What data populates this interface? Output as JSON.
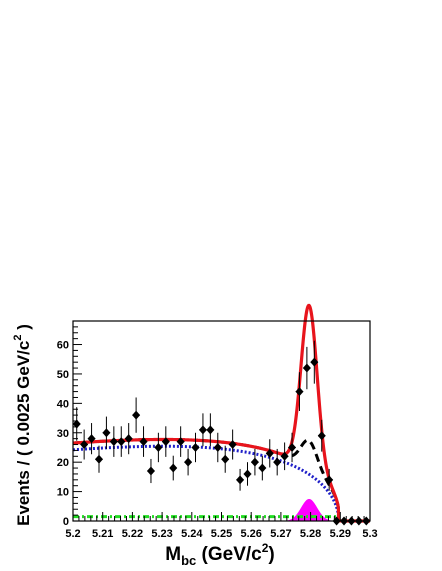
{
  "chart_data": {
    "type": "scatter",
    "xlabel": "M",
    "xlabel_sub": "bc",
    "xlabel_unit_pre": " (GeV/c",
    "xlabel_unit_sup": "2",
    "xlabel_unit_post": ")",
    "ylabel_pre": "Events / ( 0.0025 GeV/c",
    "ylabel_sup": "2",
    "ylabel_post": " )",
    "xlim": [
      5.2,
      5.3
    ],
    "ylim": [
      0,
      68
    ],
    "x_ticks": [
      "5.2",
      "5.21",
      "5.22",
      "5.23",
      "5.24",
      "5.25",
      "5.26",
      "5.27",
      "5.28",
      "5.29",
      "5.3"
    ],
    "y_ticks": [
      "0",
      "10",
      "20",
      "30",
      "40",
      "50",
      "60"
    ],
    "x_tick_values": [
      5.2,
      5.21,
      5.22,
      5.23,
      5.24,
      5.25,
      5.26,
      5.27,
      5.28,
      5.29,
      5.3
    ],
    "y_tick_values": [
      0,
      10,
      20,
      30,
      40,
      50,
      60
    ],
    "grid": false,
    "data_points": {
      "x": [
        5.20125,
        5.20375,
        5.20625,
        5.20875,
        5.21125,
        5.21375,
        5.21625,
        5.21875,
        5.22125,
        5.22375,
        5.22625,
        5.22875,
        5.23125,
        5.23375,
        5.23625,
        5.23875,
        5.24125,
        5.24375,
        5.24625,
        5.24875,
        5.25125,
        5.25375,
        5.25625,
        5.25875,
        5.26125,
        5.26375,
        5.26625,
        5.26875,
        5.27125,
        5.27375,
        5.27625,
        5.27875,
        5.28125,
        5.28375,
        5.28625,
        5.28875,
        5.29125,
        5.29375,
        5.29625,
        5.29875
      ],
      "y": [
        33,
        26,
        28,
        21,
        30,
        27,
        27,
        28,
        36,
        27,
        17,
        25,
        27,
        18,
        27,
        20,
        25,
        31,
        31,
        25,
        21,
        26,
        14,
        16,
        20,
        18,
        23,
        20,
        22,
        25,
        44,
        52,
        54,
        29,
        14,
        0,
        0,
        0,
        0,
        0
      ],
      "err": [
        5.7,
        5.1,
        5.3,
        4.6,
        5.5,
        5.2,
        5.2,
        5.3,
        6.0,
        5.2,
        4.1,
        5.0,
        5.2,
        4.2,
        5.2,
        4.5,
        5.0,
        5.6,
        5.6,
        5.0,
        4.6,
        5.1,
        3.7,
        4.0,
        4.5,
        4.2,
        4.8,
        4.5,
        4.7,
        5.0,
        6.6,
        7.2,
        7.3,
        5.4,
        3.7,
        0,
        0,
        0,
        0,
        0
      ]
    },
    "series_colors": {
      "total_fit": "#e8141c",
      "background_plus_peaking": "#000000",
      "combinatorial_background": "#1f1fc8",
      "flat_background": "#22dd22",
      "signal_peaking_fill": "#ff00ff",
      "points": "#000000"
    }
  }
}
